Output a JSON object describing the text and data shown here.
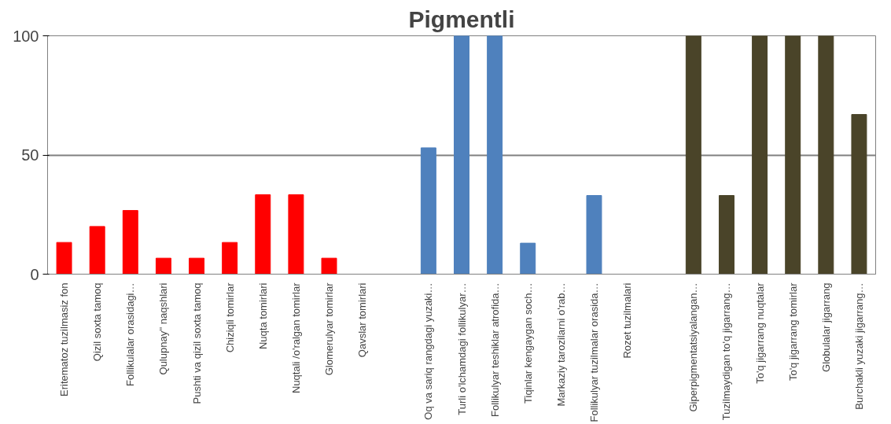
{
  "chart_data": {
    "type": "bar",
    "title": "Pigmentli",
    "categories": [
      "Eritematoz tuzilmasiz fon",
      "Qizil soxta tamoq",
      "Follikulalar orasidagi…",
      "Qulupnay'' naqshlari",
      "Pushti va qizil soxta tamoq",
      "Chiziqli tomirlar",
      "Nuqta tomirlari",
      "Nuqtali /o'ralgan tomirlar",
      "Glomerulyar tomirlar",
      "Qavslar tomirlari",
      null,
      "Oq va sariq rangdagi yuzaki…",
      "Turli o'lchamdagi follikulyar…",
      "Follikulyar teshiklar atrofida…",
      "Tiqinlar kengaygan soch…",
      "Markaziy tarozilarni o'rab…",
      "Follikulyar tuzilmalar orasida…",
      "Rozet tuzilmalari",
      null,
      "Giperpigmentatsiyalangan…",
      "Tuzilmaydigan to'q jigarrang…",
      "To'q jigarrang nuqtalar",
      "To'q jigarrang tomirlar",
      "Globulalar jigarrang",
      "Burchakli yuzaki jigarrang…"
    ],
    "values": [
      13.3,
      20,
      26.7,
      6.7,
      6.7,
      13.3,
      33.3,
      33.3,
      6.7,
      0,
      null,
      53,
      100,
      100,
      13,
      0,
      33,
      0,
      null,
      100,
      33,
      100,
      100,
      100,
      67
    ],
    "colors": [
      "#ff0000",
      "#ff0000",
      "#ff0000",
      "#ff0000",
      "#ff0000",
      "#ff0000",
      "#ff0000",
      "#ff0000",
      "#ff0000",
      "#ff0000",
      null,
      "#4f81bd",
      "#4f81bd",
      "#4f81bd",
      "#4f81bd",
      "#4f81bd",
      "#4f81bd",
      "#4f81bd",
      null,
      "#4a4429",
      "#4a4429",
      "#4a4429",
      "#4a4429",
      "#4a4429",
      "#4a4429"
    ],
    "ylim": [
      0,
      100
    ],
    "yticks": [
      0,
      50,
      100
    ],
    "grid": "y"
  }
}
